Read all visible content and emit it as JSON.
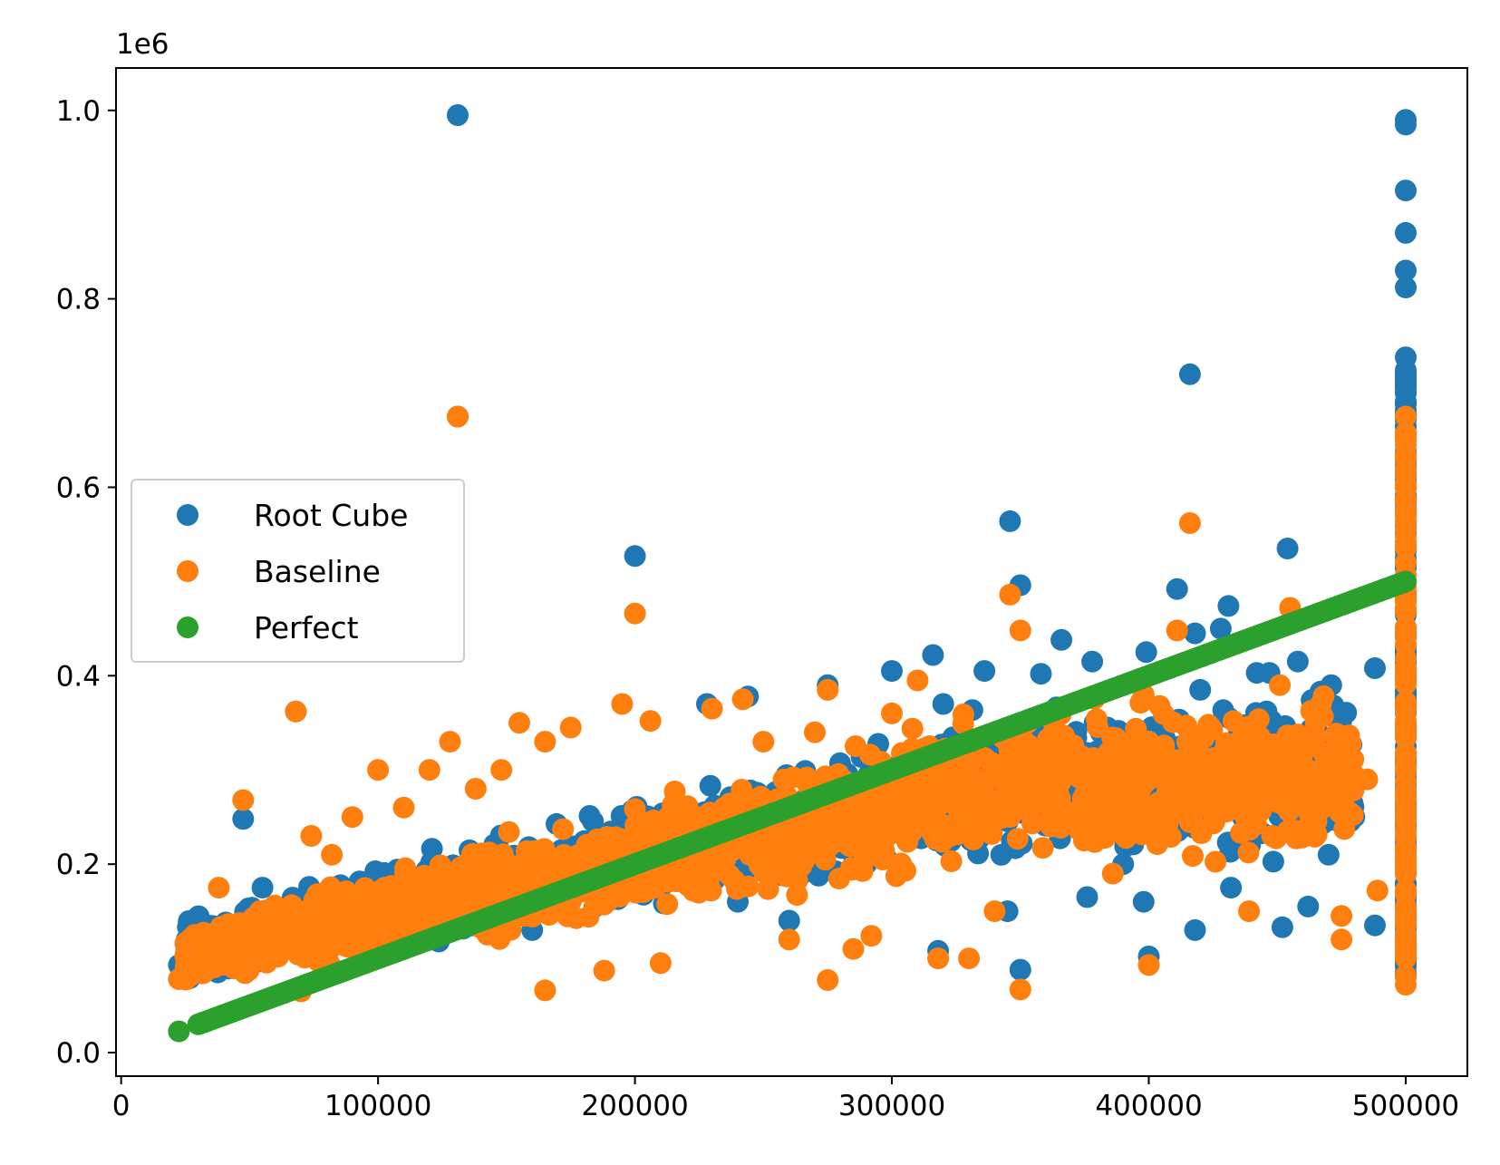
{
  "chart_data": {
    "type": "scatter",
    "title": "",
    "xlabel": "",
    "ylabel": "",
    "xlim": [
      -2000,
      524000
    ],
    "ylim": [
      -25000,
      1045000
    ],
    "y_offset_text": "1e6",
    "x_ticks": [
      0,
      100000,
      200000,
      300000,
      400000,
      500000
    ],
    "x_tick_labels": [
      "0",
      "100000",
      "200000",
      "300000",
      "400000",
      "500000"
    ],
    "y_ticks": [
      0,
      200000,
      400000,
      600000,
      800000,
      1000000
    ],
    "y_tick_labels": [
      "0.0",
      "0.2",
      "0.4",
      "0.6",
      "0.8",
      "1.0"
    ],
    "grid": false,
    "legend_placement": "center-left",
    "series": [
      {
        "name": "Root Cube",
        "color": "#1f77b4",
        "points": [
          [
            22500,
            93000
          ],
          [
            47500,
            248000
          ],
          [
            68000,
            362000
          ],
          [
            131000,
            995000
          ],
          [
            131000,
            675000
          ],
          [
            200000,
            527000
          ],
          [
            205000,
            250000
          ],
          [
            228000,
            370000
          ],
          [
            244000,
            378000
          ],
          [
            275000,
            390000
          ],
          [
            300000,
            405000
          ],
          [
            316000,
            422000
          ],
          [
            320000,
            370000
          ],
          [
            336000,
            405000
          ],
          [
            346000,
            564000
          ],
          [
            350000,
            496000
          ],
          [
            358000,
            402000
          ],
          [
            366000,
            438000
          ],
          [
            378000,
            415000
          ],
          [
            399000,
            425000
          ],
          [
            411000,
            492000
          ],
          [
            416000,
            720000
          ],
          [
            418000,
            445000
          ],
          [
            420000,
            385000
          ],
          [
            428000,
            450000
          ],
          [
            431000,
            474000
          ],
          [
            442000,
            403000
          ],
          [
            447000,
            403000
          ],
          [
            454000,
            535000
          ],
          [
            458000,
            415000
          ],
          [
            471000,
            390000
          ],
          [
            488000,
            408000
          ],
          [
            400000,
            102000
          ],
          [
            350000,
            88000
          ],
          [
            318000,
            108000
          ],
          [
            345000,
            150000
          ],
          [
            376000,
            165000
          ],
          [
            398000,
            160000
          ],
          [
            418000,
            130000
          ],
          [
            432000,
            175000
          ],
          [
            452000,
            133000
          ],
          [
            462000,
            155000
          ],
          [
            488000,
            135000
          ],
          [
            470000,
            210000
          ],
          [
            390000,
            200000
          ],
          [
            260000,
            140000
          ],
          [
            160000,
            130000
          ],
          [
            110000,
            110000
          ],
          [
            80000,
            150000
          ],
          [
            55000,
            175000
          ],
          [
            240000,
            160000
          ],
          [
            290000,
            200000
          ],
          [
            330000,
            250000
          ],
          [
            360000,
            300000
          ],
          [
            380000,
            320000
          ],
          [
            410000,
            300000
          ],
          [
            440000,
            280000
          ],
          [
            460000,
            260000
          ],
          [
            480000,
            250000
          ],
          [
            500000,
            990000
          ],
          [
            500000,
            985000
          ],
          [
            500000,
            915000
          ],
          [
            500000,
            870000
          ],
          [
            500000,
            830000
          ],
          [
            500000,
            812000
          ],
          [
            500000,
            738000
          ],
          [
            500000,
            720000
          ],
          [
            500000,
            700000
          ],
          [
            500000,
            150000
          ],
          [
            500000,
            118000
          ],
          [
            500000,
            95000
          ],
          [
            500000,
            85000
          ],
          [
            500000,
            560000
          ],
          [
            500000,
            580000
          ]
        ]
      },
      {
        "name": "Baseline",
        "color": "#ff7f0e",
        "points": [
          [
            22500,
            78000
          ],
          [
            47500,
            268000
          ],
          [
            68000,
            362000
          ],
          [
            131000,
            675000
          ],
          [
            200000,
            466000
          ],
          [
            346000,
            486000
          ],
          [
            350000,
            448000
          ],
          [
            416000,
            562000
          ],
          [
            411000,
            448000
          ],
          [
            455000,
            472000
          ],
          [
            400000,
            93000
          ],
          [
            350000,
            67000
          ],
          [
            275000,
            77000
          ],
          [
            165000,
            66000
          ],
          [
            70000,
            65000
          ],
          [
            500000,
            675000
          ],
          [
            500000,
            645000
          ],
          [
            500000,
            620000
          ],
          [
            500000,
            600000
          ],
          [
            500000,
            570000
          ],
          [
            500000,
            540000
          ],
          [
            500000,
            520000
          ],
          [
            500000,
            500000
          ],
          [
            500000,
            450000
          ],
          [
            500000,
            400000
          ],
          [
            500000,
            350000
          ],
          [
            500000,
            300000
          ],
          [
            500000,
            250000
          ],
          [
            500000,
            200000
          ],
          [
            500000,
            170000
          ],
          [
            500000,
            140000
          ],
          [
            500000,
            110000
          ],
          [
            500000,
            80000
          ],
          [
            500000,
            72000
          ],
          [
            489000,
            172000
          ],
          [
            475000,
            120000
          ],
          [
            475000,
            145000
          ],
          [
            485000,
            290000
          ],
          [
            478000,
            315000
          ],
          [
            467000,
            370000
          ],
          [
            460000,
            325000
          ],
          [
            451000,
            390000
          ],
          [
            448000,
            230000
          ],
          [
            439000,
            150000
          ],
          [
            422000,
            340000
          ],
          [
            415000,
            330000
          ],
          [
            405000,
            300000
          ],
          [
            398000,
            380000
          ],
          [
            392000,
            245000
          ],
          [
            386000,
            190000
          ],
          [
            375000,
            270000
          ],
          [
            362000,
            240000
          ],
          [
            340000,
            150000
          ],
          [
            330000,
            100000
          ],
          [
            318000,
            100000
          ],
          [
            310000,
            395000
          ],
          [
            300000,
            360000
          ],
          [
            292000,
            124000
          ],
          [
            285000,
            110000
          ],
          [
            275000,
            385000
          ],
          [
            270000,
            340000
          ],
          [
            260000,
            120000
          ],
          [
            250000,
            330000
          ],
          [
            242000,
            375000
          ],
          [
            230000,
            365000
          ],
          [
            220000,
            210000
          ],
          [
            210000,
            95000
          ],
          [
            206000,
            352000
          ],
          [
            195000,
            370000
          ],
          [
            188000,
            87000
          ],
          [
            175000,
            345000
          ],
          [
            165000,
            330000
          ],
          [
            155000,
            350000
          ],
          [
            148000,
            300000
          ],
          [
            138000,
            280000
          ],
          [
            128000,
            330000
          ],
          [
            120000,
            300000
          ],
          [
            110000,
            260000
          ],
          [
            100000,
            300000
          ],
          [
            90000,
            250000
          ],
          [
            82000,
            210000
          ],
          [
            74000,
            230000
          ],
          [
            62000,
            120000
          ],
          [
            54000,
            150000
          ],
          [
            45000,
            100000
          ],
          [
            38000,
            175000
          ],
          [
            32000,
            95000
          ]
        ]
      },
      {
        "name": "Perfect",
        "color": "#2ca02c",
        "points": [
          [
            22500,
            22500
          ],
          [
            30000,
            30000
          ],
          [
            500000,
            500000
          ]
        ]
      }
    ]
  }
}
